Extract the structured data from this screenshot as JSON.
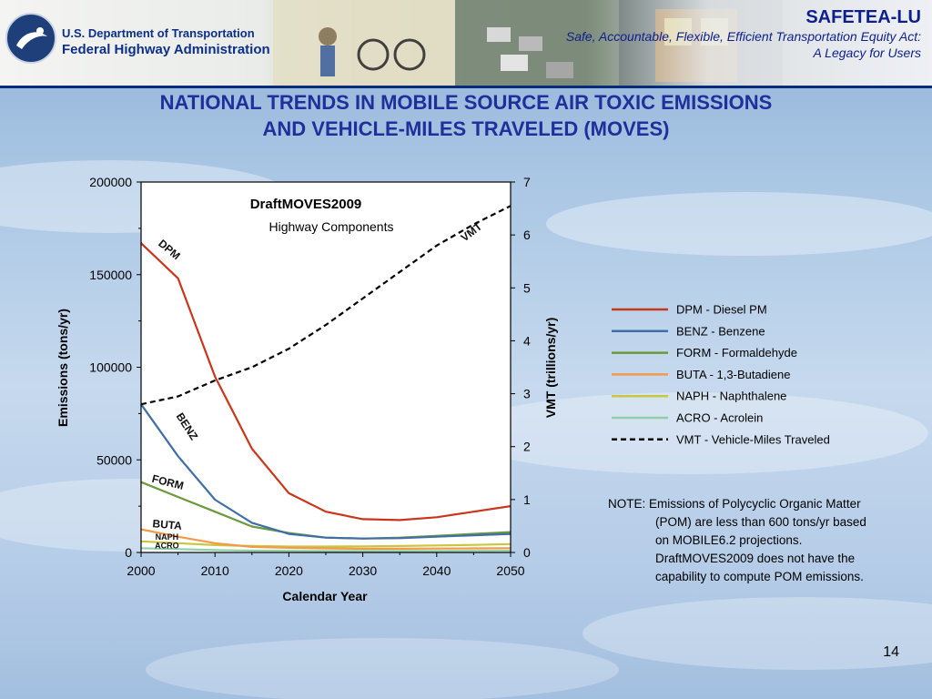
{
  "header": {
    "agency_line1": "U.S. Department of Transportation",
    "agency_line2": "Federal Highway Administration",
    "brand_title": "SAFETEA-LU",
    "brand_sub1": "Safe, Accountable, Flexible, Efficient Transportation Equity Act:",
    "brand_sub2": "A Legacy for Users"
  },
  "slide": {
    "title_line1": "NATIONAL TRENDS IN MOBILE SOURCE AIR TOXIC EMISSIONS",
    "title_line2": "AND VEHICLE-MILES TRAVELED (MOVES)",
    "note_line1": "NOTE:  Emissions of Polycyclic Organic Matter",
    "note_line2": "(POM) are less than 600 tons/yr  based",
    "note_line3": "on MOBILE6.2 projections.",
    "note_line4": "DraftMOVES2009 does not have the",
    "note_line5": "capability to compute POM emissions.",
    "page_number": "14"
  },
  "colors": {
    "title": "#1f2f9b",
    "header_rule": "#0a2a7a",
    "dpm": "#c8371b",
    "benz": "#3f6fa6",
    "form": "#6a9a3a",
    "buta": "#f29a4a",
    "naph": "#c9c63f",
    "acro": "#8fd0a8",
    "vmt": "#000000"
  },
  "chart_data": {
    "type": "line",
    "title": "DraftMOVES2009",
    "subtitle": "Highway Components",
    "xlabel": "Calendar Year",
    "ylabel": "Emissions (tons/yr)",
    "y2label": "VMT (trillions/yr)",
    "xlim": [
      2000,
      2050
    ],
    "ylim": [
      0,
      200000
    ],
    "y2lim": [
      0,
      7
    ],
    "x_ticks": [
      "2000",
      "2010",
      "2020",
      "2030",
      "2040",
      "2050"
    ],
    "y_ticks": [
      "0",
      "50000",
      "100000",
      "150000",
      "200000"
    ],
    "y2_ticks": [
      "0",
      "1",
      "2",
      "3",
      "4",
      "5",
      "6",
      "7"
    ],
    "grid": false,
    "legend_position": "right",
    "series": [
      {
        "name": "DPM - Diesel PM",
        "label": "DPM",
        "axis": "left",
        "style": "solid",
        "color_key": "dpm",
        "x": [
          1999,
          2000,
          2005,
          2010,
          2015,
          2020,
          2025,
          2030,
          2035,
          2040,
          2045,
          2050
        ],
        "y": [
          176000,
          167000,
          148000,
          95000,
          56000,
          32000,
          22000,
          18000,
          17500,
          19000,
          22000,
          25000
        ]
      },
      {
        "name": "BENZ - Benzene",
        "label": "BENZ",
        "axis": "left",
        "style": "solid",
        "color_key": "benz",
        "x": [
          1999,
          2000,
          2005,
          2010,
          2015,
          2020,
          2025,
          2030,
          2035,
          2040,
          2045,
          2050
        ],
        "y": [
          90000,
          80000,
          52000,
          28500,
          16000,
          10000,
          8000,
          7500,
          7700,
          8500,
          9300,
          10000
        ]
      },
      {
        "name": "FORM - Formaldehyde",
        "label": "FORM",
        "axis": "left",
        "style": "solid",
        "color_key": "form",
        "x": [
          1999,
          2000,
          2005,
          2010,
          2015,
          2020,
          2025,
          2030,
          2035,
          2040,
          2045,
          2050
        ],
        "y": [
          40000,
          38000,
          30000,
          22000,
          14000,
          10500,
          8000,
          7500,
          8000,
          9000,
          10000,
          11000
        ]
      },
      {
        "name": "BUTA - 1,3-Butadiene",
        "label": "BUTA",
        "axis": "left",
        "style": "solid",
        "color_key": "buta",
        "x": [
          1999,
          2000,
          2005,
          2010,
          2015,
          2020,
          2025,
          2030,
          2035,
          2040,
          2045,
          2050
        ],
        "y": [
          13500,
          12500,
          8500,
          5000,
          3000,
          2500,
          2200,
          2000,
          2000,
          2100,
          2200,
          2300
        ]
      },
      {
        "name": "NAPH - Naphthalene",
        "label": "NAPH",
        "axis": "left",
        "style": "solid",
        "color_key": "naph",
        "x": [
          1999,
          2000,
          2005,
          2010,
          2015,
          2020,
          2025,
          2030,
          2035,
          2040,
          2045,
          2050
        ],
        "y": [
          6500,
          6000,
          5000,
          4000,
          3500,
          3200,
          3200,
          3300,
          3500,
          3800,
          4100,
          4500
        ]
      },
      {
        "name": "ACRO - Acrolein",
        "label": "ACRO",
        "axis": "left",
        "style": "solid",
        "color_key": "acro",
        "x": [
          1999,
          2000,
          2005,
          2010,
          2015,
          2020,
          2025,
          2030,
          2035,
          2040,
          2045,
          2050
        ],
        "y": [
          2500,
          2300,
          1800,
          1300,
          1000,
          900,
          800,
          800,
          800,
          850,
          900,
          950
        ]
      },
      {
        "name": "VMT - Vehicle-Miles Traveled",
        "label": "VMT",
        "axis": "right",
        "style": "dashed",
        "color_key": "vmt",
        "x": [
          1999,
          2000,
          2005,
          2010,
          2015,
          2020,
          2025,
          2030,
          2035,
          2040,
          2045,
          2050
        ],
        "y": [
          2.7,
          2.8,
          2.95,
          3.25,
          3.5,
          3.85,
          4.3,
          4.8,
          5.3,
          5.8,
          6.2,
          6.55
        ]
      }
    ]
  }
}
